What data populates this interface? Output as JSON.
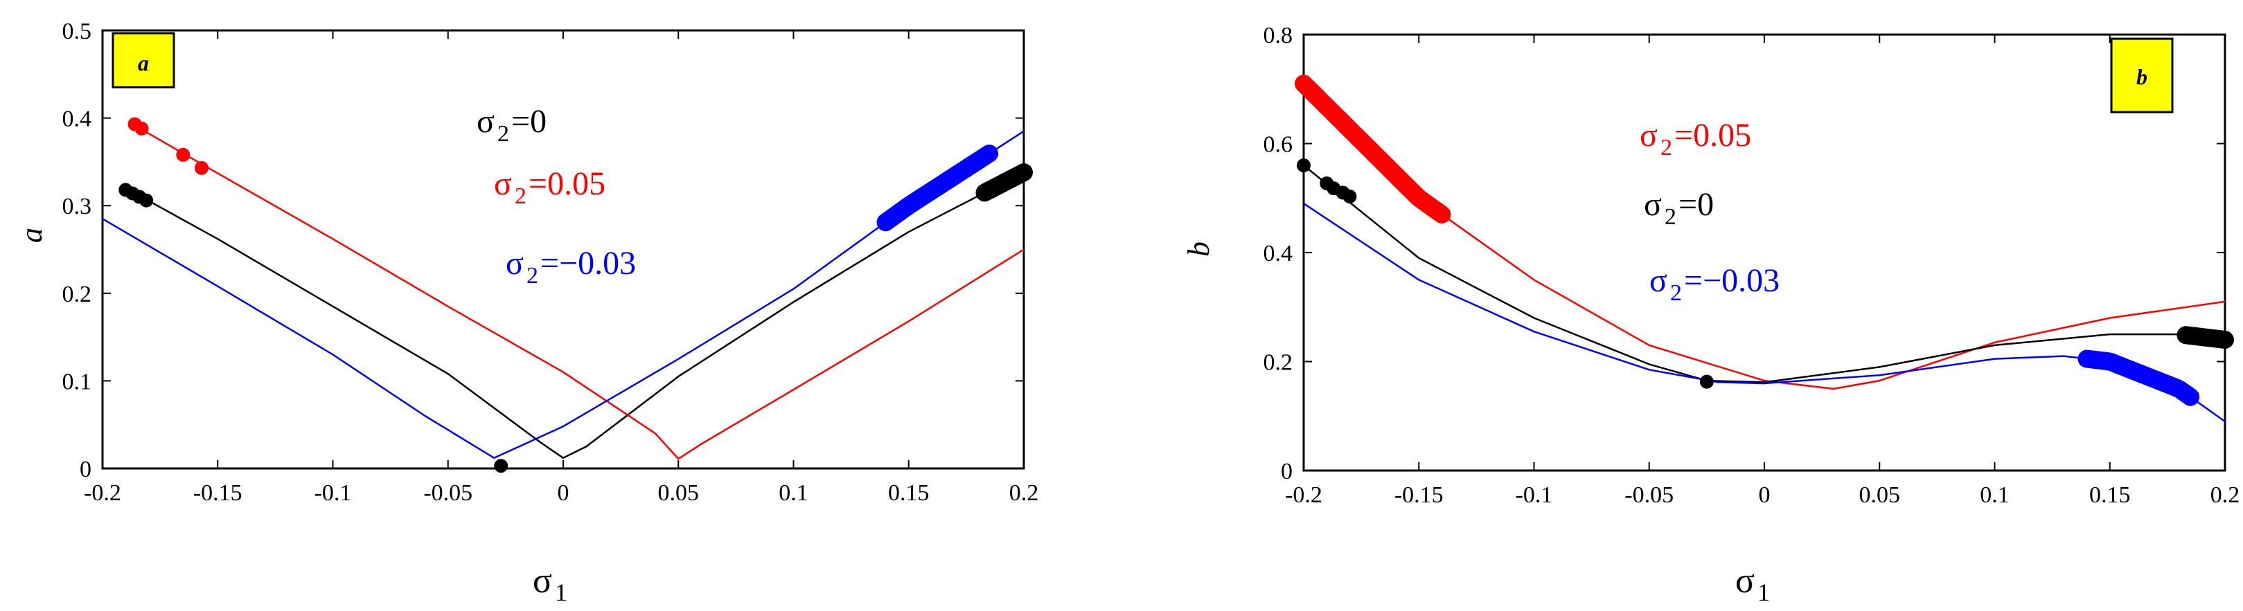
{
  "chart_data": [
    {
      "panel": "a",
      "type": "line",
      "ylabel": "a",
      "xlabel": "σ",
      "xlabel_sub": "1",
      "xlim": [
        -0.2,
        0.2
      ],
      "ylim": [
        0,
        0.5
      ],
      "xticks": [
        -0.2,
        -0.15,
        -0.1,
        -0.05,
        0,
        0.05,
        0.1,
        0.15,
        0.2
      ],
      "xtick_labels": [
        "-0.2",
        "-0.15",
        "-0.1",
        "-0.05",
        "0",
        "0.05",
        "0.1",
        "0.15",
        "0.2"
      ],
      "yticks": [
        0,
        0.1,
        0.2,
        0.3,
        0.4,
        0.5
      ],
      "ytick_labels": [
        "0",
        "0.1",
        "0.2",
        "0.3",
        "0.4",
        "0.5"
      ],
      "series": [
        {
          "name_prefix": "σ",
          "name_sub": "2",
          "name_value": "=0",
          "color": "#000000",
          "x": [
            -0.19,
            -0.15,
            -0.1,
            -0.05,
            -0.01,
            0,
            0.01,
            0.05,
            0.1,
            0.15,
            0.2
          ],
          "y": [
            0.32,
            0.262,
            0.185,
            0.108,
            0.03,
            0.012,
            0.025,
            0.105,
            0.19,
            0.27,
            0.338
          ]
        },
        {
          "name_prefix": "σ",
          "name_sub": "2",
          "name_value": "=0.05",
          "color": "#ff0000",
          "x": [
            -0.185,
            -0.15,
            -0.1,
            -0.05,
            0,
            0.04,
            0.05,
            0.06,
            0.1,
            0.15,
            0.2
          ],
          "y": [
            0.39,
            0.337,
            0.262,
            0.185,
            0.11,
            0.04,
            0.011,
            0.028,
            0.09,
            0.168,
            0.25
          ]
        },
        {
          "name_prefix": "σ",
          "name_sub": "2",
          "name_value": "=−0.03",
          "color": "#0000ff",
          "x": [
            -0.2,
            -0.15,
            -0.1,
            -0.06,
            -0.03,
            0,
            0.05,
            0.1,
            0.15,
            0.2
          ],
          "y": [
            0.285,
            0.208,
            0.13,
            0.06,
            0.012,
            0.048,
            0.125,
            0.205,
            0.3,
            0.385
          ]
        }
      ],
      "markers": [
        {
          "color": "#ff0000",
          "size": "small",
          "x": [
            -0.186,
            -0.183,
            -0.165,
            -0.157
          ],
          "y": [
            0.393,
            0.388,
            0.358,
            0.343
          ]
        },
        {
          "color": "#000000",
          "size": "small",
          "x": [
            -0.19,
            -0.187,
            -0.184,
            -0.181
          ],
          "y": [
            0.318,
            0.314,
            0.31,
            0.306
          ]
        },
        {
          "color": "#000000",
          "size": "small",
          "x": [
            -0.027
          ],
          "y": [
            0.003
          ]
        },
        {
          "color": "#0000ff",
          "size": "large",
          "segment": [
            0.14,
            0.185
          ],
          "series": 2
        },
        {
          "color": "#000000",
          "size": "large",
          "segment": [
            0.183,
            0.2
          ],
          "series": 0
        }
      ]
    },
    {
      "panel": "b",
      "type": "line",
      "ylabel": "b",
      "xlabel": "σ",
      "xlabel_sub": "1",
      "xlim": [
        -0.2,
        0.2
      ],
      "ylim": [
        0,
        0.8
      ],
      "xticks": [
        -0.2,
        -0.15,
        -0.1,
        -0.05,
        0,
        0.05,
        0.1,
        0.15,
        0.2
      ],
      "xtick_labels": [
        "-0.2",
        "-0.15",
        "-0.1",
        "-0.05",
        "0",
        "0.05",
        "0.1",
        "0.15",
        "0.2"
      ],
      "yticks": [
        0,
        0.2,
        0.4,
        0.6,
        0.8
      ],
      "ytick_labels": [
        "0",
        "0.2",
        "0.4",
        "0.6",
        "0.8"
      ],
      "series": [
        {
          "name_prefix": "σ",
          "name_sub": "2",
          "name_value": "=0.05",
          "color": "#ff0000",
          "x": [
            -0.2,
            -0.15,
            -0.1,
            -0.05,
            0,
            0.03,
            0.05,
            0.1,
            0.15,
            0.2
          ],
          "y": [
            0.71,
            0.5,
            0.35,
            0.23,
            0.165,
            0.15,
            0.165,
            0.235,
            0.28,
            0.31
          ]
        },
        {
          "name_prefix": "σ",
          "name_sub": "2",
          "name_value": "=0",
          "color": "#000000",
          "x": [
            -0.2,
            -0.15,
            -0.1,
            -0.05,
            -0.025,
            0,
            0.05,
            0.1,
            0.15,
            0.18,
            0.2
          ],
          "y": [
            0.56,
            0.39,
            0.28,
            0.195,
            0.165,
            0.162,
            0.19,
            0.23,
            0.25,
            0.25,
            0.24
          ]
        },
        {
          "name_prefix": "σ",
          "name_sub": "2",
          "name_value": "=−0.03",
          "color": "#0000ff",
          "x": [
            -0.2,
            -0.15,
            -0.1,
            -0.05,
            -0.02,
            0,
            0.05,
            0.1,
            0.13,
            0.15,
            0.18,
            0.2
          ],
          "y": [
            0.49,
            0.35,
            0.255,
            0.185,
            0.162,
            0.16,
            0.175,
            0.205,
            0.21,
            0.2,
            0.15,
            0.09
          ]
        }
      ],
      "markers": [
        {
          "color": "#ff0000",
          "size": "large",
          "segment": [
            -0.2,
            -0.14
          ],
          "series": 0
        },
        {
          "color": "#000000",
          "size": "small",
          "x": [
            -0.2,
            -0.19,
            -0.187,
            -0.183,
            -0.18
          ],
          "y": [
            0.56,
            0.527,
            0.518,
            0.51,
            0.503
          ]
        },
        {
          "color": "#000000",
          "size": "small",
          "x": [
            -0.025
          ],
          "y": [
            0.163
          ]
        },
        {
          "color": "#0000ff",
          "size": "large",
          "segment": [
            0.14,
            0.185
          ],
          "series": 2
        },
        {
          "color": "#000000",
          "size": "large",
          "segment": [
            0.183,
            0.2
          ],
          "series": 1
        }
      ]
    }
  ]
}
